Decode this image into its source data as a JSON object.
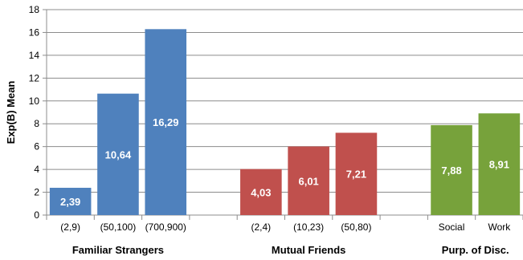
{
  "chart_data": {
    "type": "bar",
    "ylabel": "Exp(B) Mean",
    "ylim": [
      0,
      18
    ],
    "yticks": [
      0,
      2,
      4,
      6,
      8,
      10,
      12,
      14,
      16,
      18
    ],
    "grid": true,
    "categories": [
      "(2,9)",
      "(50,100)",
      "(700,900)",
      "",
      "(2,4)",
      "(10,23)",
      "(50,80)",
      "",
      "Social",
      "Work"
    ],
    "values": [
      2.39,
      10.64,
      16.29,
      null,
      4.03,
      6.01,
      7.21,
      null,
      7.88,
      8.91
    ],
    "data_labels": [
      "2,39",
      "10,64",
      "16,29",
      "",
      "4,03",
      "6,01",
      "7,21",
      "",
      "7,88",
      "8,91"
    ],
    "groups": [
      {
        "name": "Familiar Strangers",
        "start": 0,
        "end": 2,
        "color": "#4f81bd"
      },
      {
        "name": "Mutual Friends",
        "start": 4,
        "end": 6,
        "color": "#c0504d"
      },
      {
        "name": "Purp. of Disc.",
        "start": 8,
        "end": 9,
        "color": "#77a23b"
      }
    ]
  }
}
